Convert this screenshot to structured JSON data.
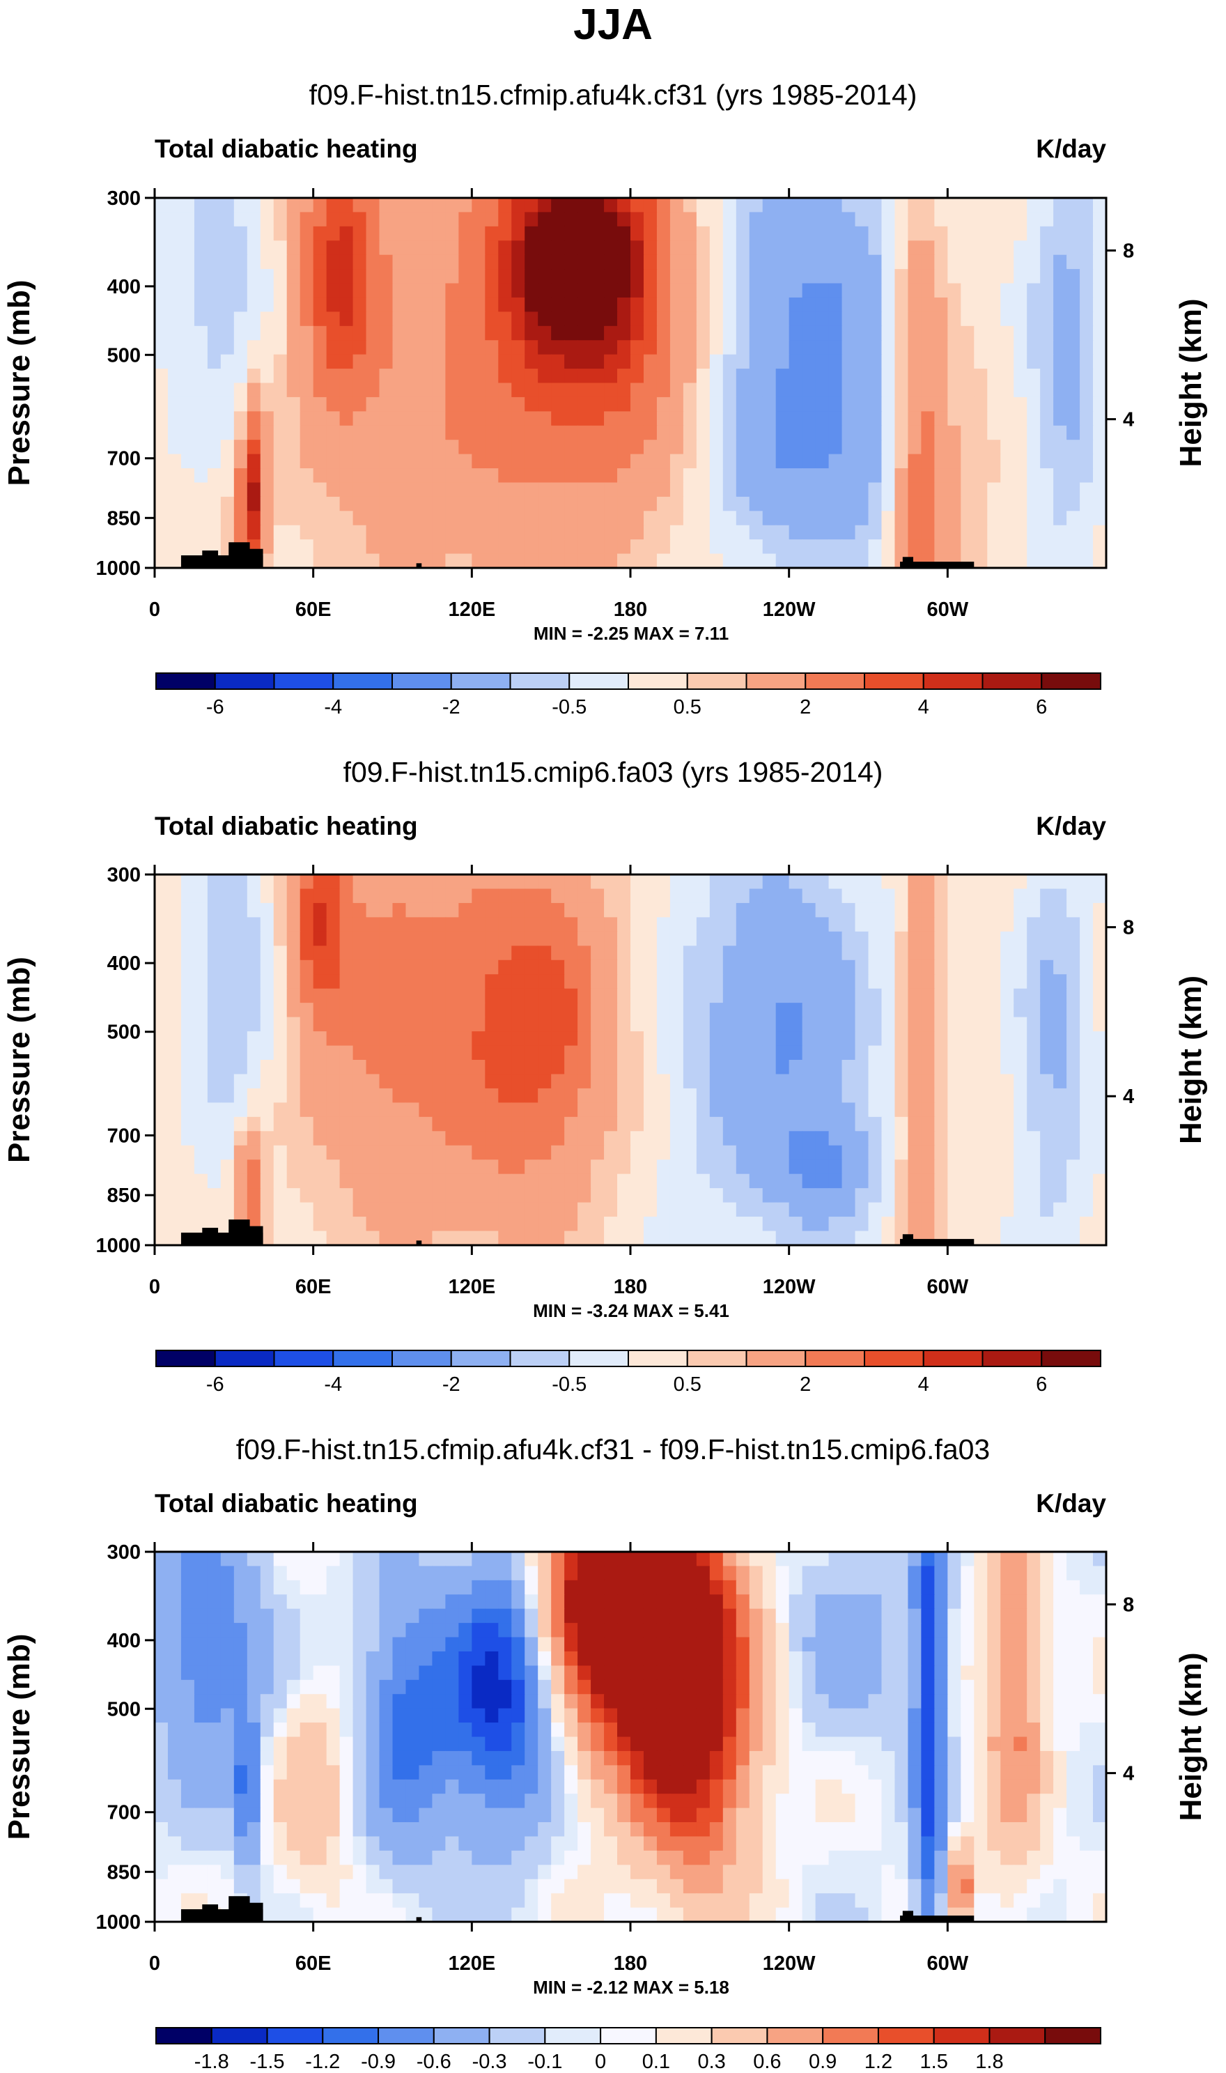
{
  "figure_title": "JJA",
  "colors": {
    "panel_1": [
      "#000066",
      "#0a2ac4",
      "#1e4fe6",
      "#3370ea",
      "#5f8fee",
      "#8eb0f2",
      "#bcd0f6",
      "#e1ecfb",
      "#fde8d8",
      "#fbcab0",
      "#f7a383",
      "#f27a55",
      "#e84f2b",
      "#d02f1a",
      "#aa1a12",
      "#780c0c"
    ],
    "panel_2": [
      "#000066",
      "#0a2ac4",
      "#1e4fe6",
      "#3370ea",
      "#5f8fee",
      "#8eb0f2",
      "#bcd0f6",
      "#e1ecfb",
      "#fde8d8",
      "#fbcab0",
      "#f7a383",
      "#f27a55",
      "#e84f2b",
      "#d02f1a",
      "#aa1a12",
      "#780c0c"
    ],
    "panel_3": [
      "#000066",
      "#0a2ac4",
      "#1e4fe6",
      "#3370ea",
      "#5f8fee",
      "#8eb0f2",
      "#bcd0f6",
      "#e1ecfb",
      "#f7f7ff",
      "#fde8d8",
      "#fbcab0",
      "#f7a383",
      "#f27a55",
      "#e84f2b",
      "#d02f1a",
      "#aa1a12",
      "#780c0c"
    ],
    "terrain": "#000000"
  },
  "chart_data": [
    {
      "type": "heatmap",
      "title": "f09.F-hist.tn15.cfmip.afu4k.cf31 (yrs 1985-2014)",
      "variable": "Total diabatic heating",
      "units": "K/day",
      "ylabel": "Pressure (mb)",
      "ylabel_right": "Height (km)",
      "x_ticks": [
        "0",
        "60E",
        "120E",
        "180",
        "120W",
        "60W"
      ],
      "y_ticks": [
        "300",
        "400",
        "500",
        "700",
        "850",
        "1000"
      ],
      "y_right_ticks": [
        "8",
        "4"
      ],
      "min_label": "MIN =  -2.25",
      "max_label": "MAX =  7.11",
      "colorbar_labels": [
        "-6",
        "-4",
        "-2",
        "-0.5",
        "0.5",
        "2",
        "4",
        "6"
      ],
      "summary": {
        "min": -2.25,
        "max": 7.11
      },
      "xlim": [
        0,
        360
      ],
      "ylim": [
        1000,
        300
      ]
    },
    {
      "type": "heatmap",
      "title": "f09.F-hist.tn15.cmip6.fa03 (yrs 1985-2014)",
      "variable": "Total diabatic heating",
      "units": "K/day",
      "ylabel": "Pressure (mb)",
      "ylabel_right": "Height (km)",
      "x_ticks": [
        "0",
        "60E",
        "120E",
        "180",
        "120W",
        "60W"
      ],
      "y_ticks": [
        "300",
        "400",
        "500",
        "700",
        "850",
        "1000"
      ],
      "y_right_ticks": [
        "8",
        "4"
      ],
      "min_label": "MIN =  -3.24",
      "max_label": "MAX =  5.41",
      "colorbar_labels": [
        "-6",
        "-4",
        "-2",
        "-0.5",
        "0.5",
        "2",
        "4",
        "6"
      ],
      "summary": {
        "min": -3.24,
        "max": 5.41
      },
      "xlim": [
        0,
        360
      ],
      "ylim": [
        1000,
        300
      ]
    },
    {
      "type": "heatmap",
      "title": "f09.F-hist.tn15.cfmip.afu4k.cf31 - f09.F-hist.tn15.cmip6.fa03",
      "variable": "Total diabatic heating",
      "units": "K/day",
      "ylabel": "Pressure (mb)",
      "ylabel_right": "Height (km)",
      "x_ticks": [
        "0",
        "60E",
        "120E",
        "180",
        "120W",
        "60W"
      ],
      "y_ticks": [
        "300",
        "400",
        "500",
        "700",
        "850",
        "1000"
      ],
      "y_right_ticks": [
        "8",
        "4"
      ],
      "min_label": "MIN =  -2.12",
      "max_label": "MAX =  5.18",
      "colorbar_labels": [
        "-1.8",
        "-1.5",
        "-1.2",
        "-0.9",
        "-0.6",
        "-0.3",
        "-0.1",
        "0",
        "0.1",
        "0.3",
        "0.6",
        "0.9",
        "1.2",
        "1.5",
        "1.8"
      ],
      "summary": {
        "min": -2.12,
        "max": 5.18
      },
      "xlim": [
        0,
        360
      ],
      "ylim": [
        1000,
        300
      ]
    }
  ]
}
